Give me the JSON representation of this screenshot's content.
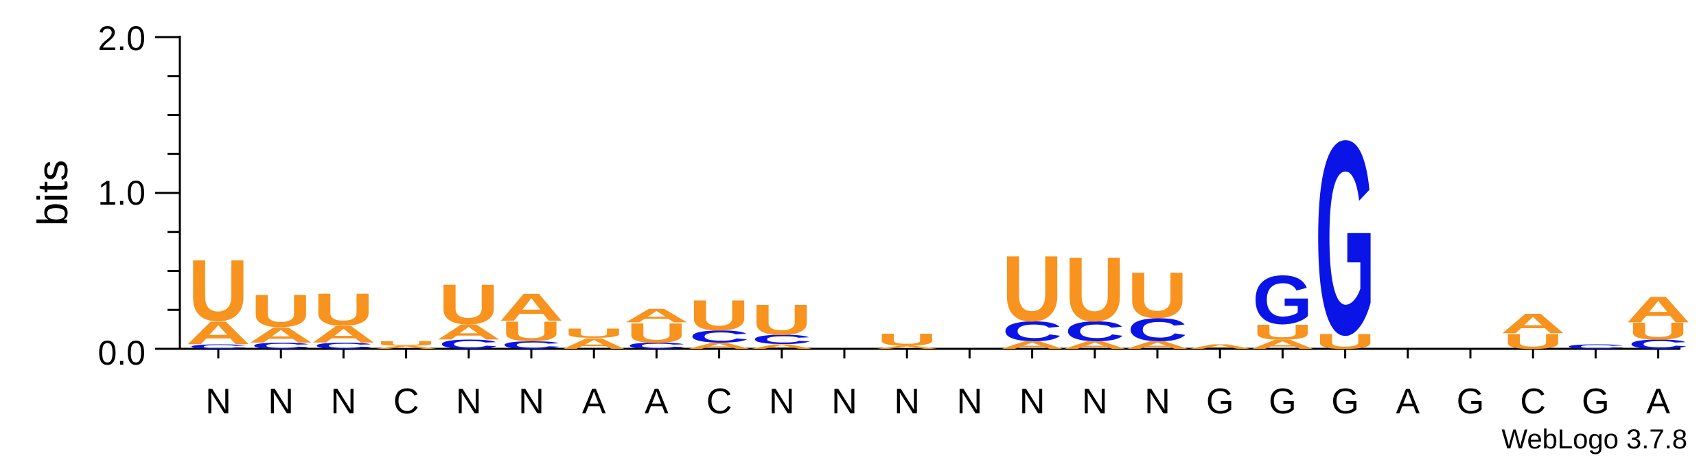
{
  "chart_data": {
    "type": "sequence-logo",
    "ylabel": "bits",
    "ylim": [
      0,
      2
    ],
    "yticks": [
      {
        "value": 0,
        "label": "0.0"
      },
      {
        "value": 1,
        "label": "1.0"
      },
      {
        "value": 2,
        "label": "2.0"
      }
    ],
    "minor_ticks_per_major": 4,
    "consensus": [
      "N",
      "N",
      "N",
      "C",
      "N",
      "N",
      "A",
      "A",
      "C",
      "N",
      "N",
      "N",
      "N",
      "N",
      "N",
      "N",
      "G",
      "G",
      "G",
      "A",
      "G",
      "C",
      "G",
      "A"
    ],
    "colors": {
      "A": "#f7931e",
      "U": "#f7931e",
      "C": "#0a14e6",
      "G": "#0a14e6"
    },
    "positions": [
      {
        "stack": [
          [
            "C",
            0.03
          ],
          [
            "A",
            0.15
          ],
          [
            "U",
            0.4
          ]
        ]
      },
      {
        "stack": [
          [
            "C",
            0.04
          ],
          [
            "A",
            0.1
          ],
          [
            "U",
            0.21
          ]
        ]
      },
      {
        "stack": [
          [
            "C",
            0.04
          ],
          [
            "A",
            0.11
          ],
          [
            "U",
            0.21
          ]
        ]
      },
      {
        "stack": [
          [
            "A",
            0.02
          ],
          [
            "U",
            0.03
          ]
        ]
      },
      {
        "stack": [
          [
            "C",
            0.06
          ],
          [
            "A",
            0.1
          ],
          [
            "U",
            0.26
          ]
        ]
      },
      {
        "stack": [
          [
            "C",
            0.05
          ],
          [
            "U",
            0.13
          ],
          [
            "A",
            0.18
          ]
        ]
      },
      {
        "stack": [
          [
            "A",
            0.07
          ],
          [
            "U",
            0.06
          ]
        ]
      },
      {
        "stack": [
          [
            "C",
            0.04
          ],
          [
            "U",
            0.13
          ],
          [
            "A",
            0.09
          ]
        ]
      },
      {
        "stack": [
          [
            "A",
            0.04
          ],
          [
            "C",
            0.08
          ],
          [
            "U",
            0.2
          ]
        ]
      },
      {
        "stack": [
          [
            "A",
            0.03
          ],
          [
            "C",
            0.06
          ],
          [
            "U",
            0.2
          ]
        ]
      },
      {
        "stack": []
      },
      {
        "stack": [
          [
            "A",
            0.02
          ],
          [
            "U",
            0.08
          ]
        ]
      },
      {
        "stack": []
      },
      {
        "stack": [
          [
            "A",
            0.05
          ],
          [
            "C",
            0.13
          ],
          [
            "U",
            0.43
          ]
        ]
      },
      {
        "stack": [
          [
            "A",
            0.05
          ],
          [
            "C",
            0.13
          ],
          [
            "U",
            0.42
          ]
        ]
      },
      {
        "stack": [
          [
            "A",
            0.05
          ],
          [
            "C",
            0.15
          ],
          [
            "U",
            0.3
          ]
        ]
      },
      {
        "stack": [
          [
            "A",
            0.03
          ]
        ]
      },
      {
        "stack": [
          [
            "A",
            0.06
          ],
          [
            "U",
            0.1
          ],
          [
            "G",
            0.32
          ]
        ]
      },
      {
        "stack": [
          [
            "U",
            0.1
          ],
          [
            "G",
            1.27
          ]
        ]
      },
      {
        "stack": []
      },
      {
        "stack": []
      },
      {
        "stack": [
          [
            "U",
            0.1
          ],
          [
            "A",
            0.13
          ]
        ]
      },
      {
        "stack": [
          [
            "C",
            0.03
          ]
        ]
      },
      {
        "stack": [
          [
            "C",
            0.06
          ],
          [
            "U",
            0.11
          ],
          [
            "A",
            0.17
          ]
        ]
      }
    ]
  },
  "credit": "WebLogo 3.7.8"
}
